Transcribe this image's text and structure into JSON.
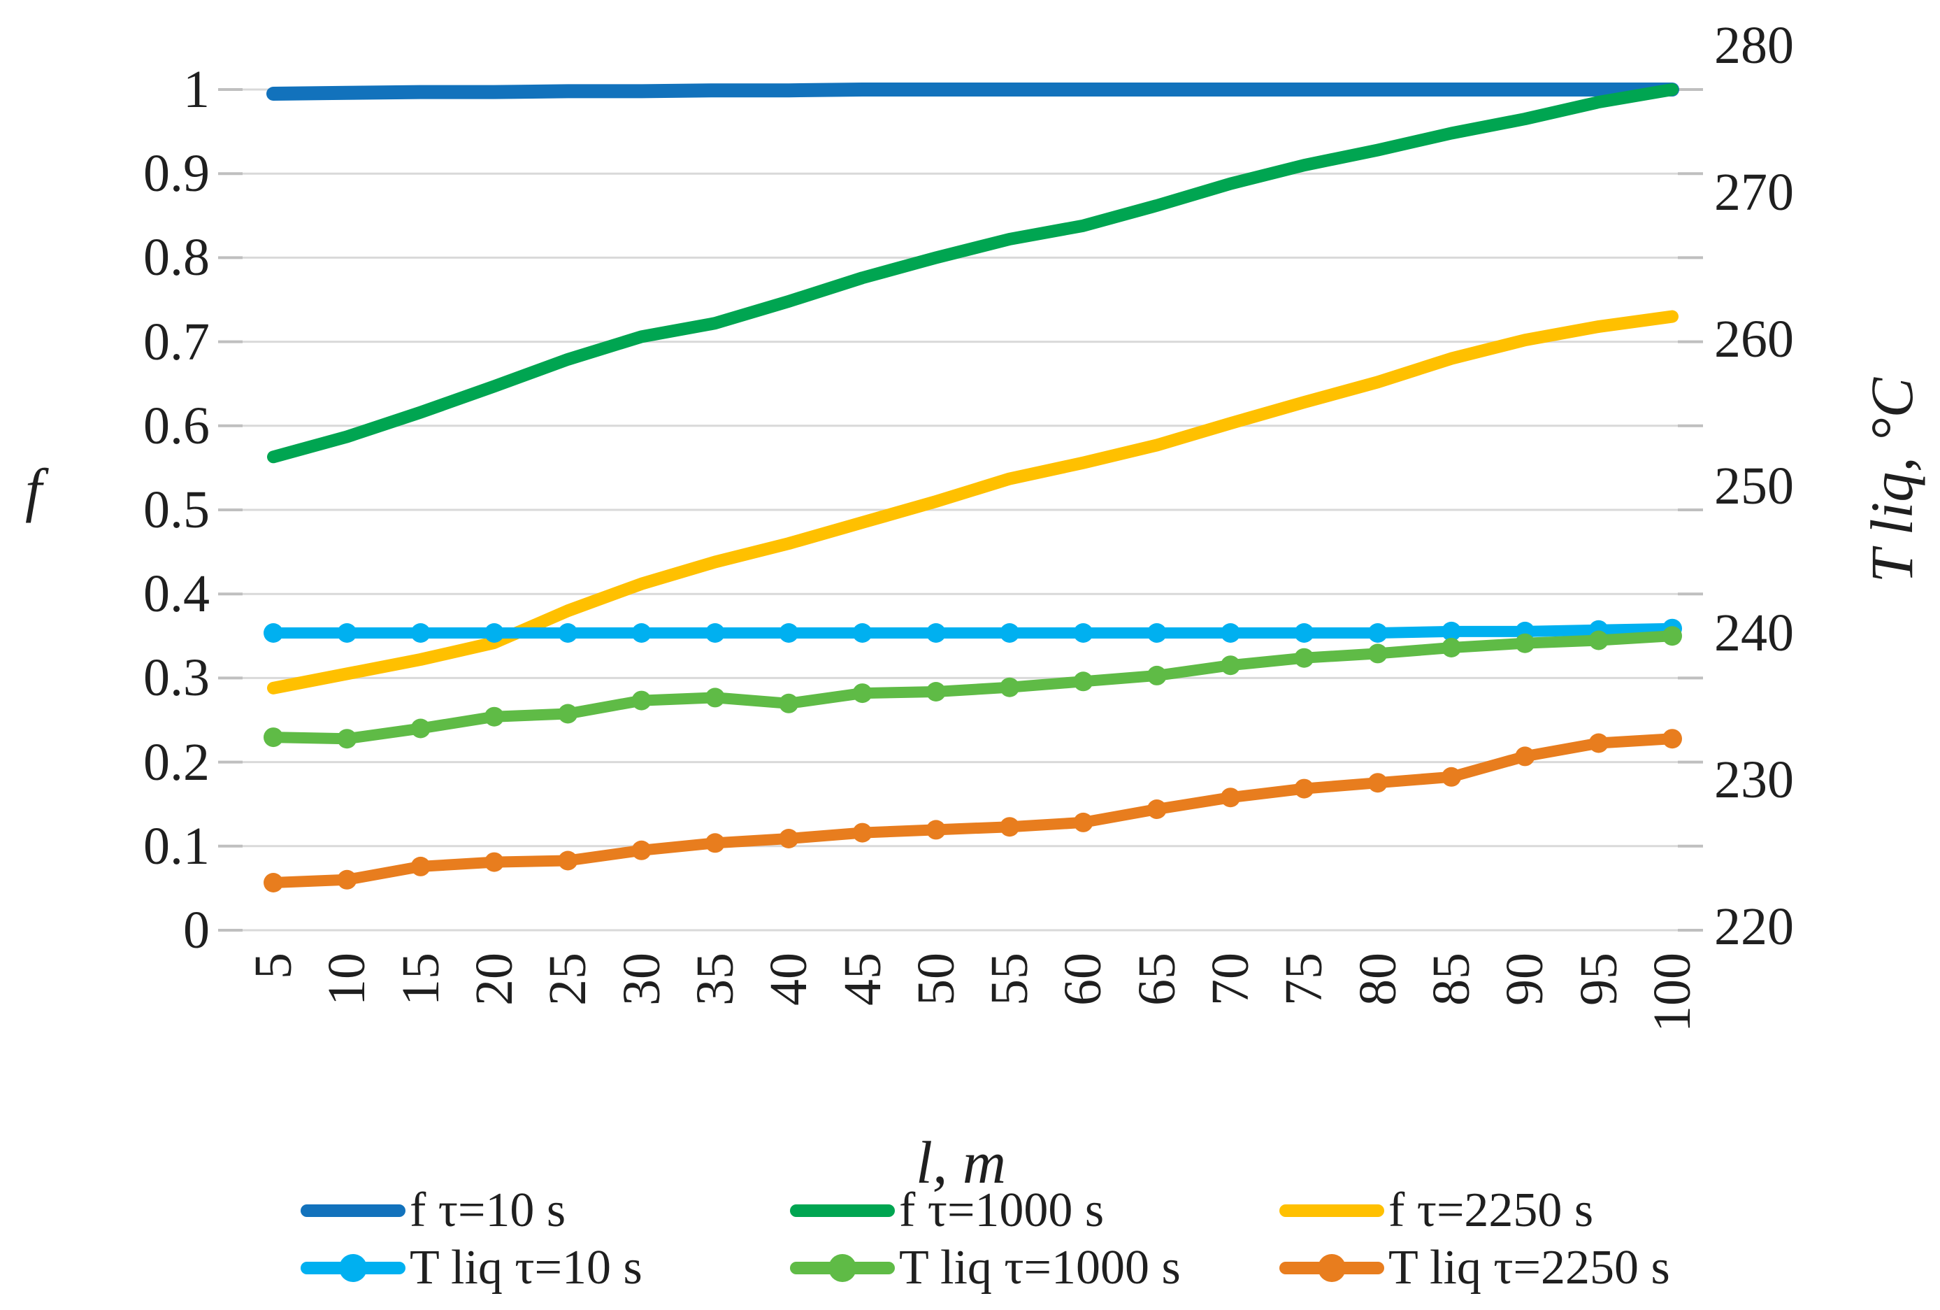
{
  "figure": {
    "background": "#ffffff",
    "grid_color": "#d9d9d9",
    "text_color": "#1f1f1f"
  },
  "chart_data": {
    "type": "line",
    "title": "",
    "xlabel": "l, m",
    "ylabel_left": "f",
    "ylabel_right": "T liq, °C",
    "x": [
      5,
      10,
      15,
      20,
      25,
      30,
      35,
      40,
      45,
      50,
      55,
      60,
      65,
      70,
      75,
      80,
      85,
      90,
      95,
      100
    ],
    "x_tick_labels": [
      "5",
      "10",
      "15",
      "20",
      "25",
      "30",
      "35",
      "40",
      "45",
      "50",
      "55",
      "60",
      "65",
      "70",
      "75",
      "80",
      "85",
      "90",
      "95",
      "100"
    ],
    "ylim_left": [
      0,
      1
    ],
    "left_tick_labels": [
      "0",
      "0.1",
      "0.2",
      "0.3",
      "0.4",
      "0.5",
      "0.6",
      "0.7",
      "0.8",
      "0.9",
      "1"
    ],
    "ylim_right": [
      220,
      280
    ],
    "right_tick_labels": [
      "220",
      "230",
      "240",
      "250",
      "260",
      "270",
      "280"
    ],
    "grid": "horizontal",
    "legend_position": "bottom",
    "series": [
      {
        "name": "f τ=10 s",
        "axis": "left",
        "color": "#1272bc",
        "marker": false,
        "width": 20,
        "values": [
          0.995,
          0.996,
          0.997,
          0.997,
          0.998,
          0.998,
          0.999,
          0.999,
          1.0,
          1.0,
          1.0,
          1.0,
          1.0,
          1.0,
          1.0,
          1.0,
          1.0,
          1.0,
          1.0,
          1.0
        ]
      },
      {
        "name": "f τ=1000 s",
        "axis": "left",
        "color": "#00a551",
        "marker": false,
        "width": 18,
        "values": [
          0.563,
          0.587,
          0.616,
          0.647,
          0.679,
          0.706,
          0.722,
          0.748,
          0.776,
          0.8,
          0.822,
          0.838,
          0.862,
          0.888,
          0.91,
          0.928,
          0.948,
          0.965,
          0.985,
          1.0
        ]
      },
      {
        "name": "f τ=2250 s",
        "axis": "left",
        "color": "#ffc000",
        "marker": false,
        "width": 18,
        "values": [
          0.288,
          0.305,
          0.322,
          0.342,
          0.38,
          0.412,
          0.438,
          0.46,
          0.485,
          0.51,
          0.537,
          0.556,
          0.577,
          0.603,
          0.628,
          0.652,
          0.68,
          0.702,
          0.718,
          0.73
        ]
      },
      {
        "name": "T liq τ=10 s",
        "axis": "right",
        "color": "#00b0f0",
        "marker": true,
        "width": 16,
        "values": [
          240,
          240,
          240,
          240,
          240,
          240,
          240,
          240,
          240,
          240,
          240,
          240,
          240,
          240,
          240,
          240,
          240.1,
          240.1,
          240.2,
          240.3
        ]
      },
      {
        "name": "T liq τ=1000 s",
        "axis": "right",
        "color": "#5fbb46",
        "marker": true,
        "width": 16,
        "values": [
          232.9,
          232.8,
          233.5,
          234.3,
          234.5,
          235.4,
          235.6,
          235.2,
          235.9,
          236.0,
          236.3,
          236.7,
          237.1,
          237.8,
          238.3,
          238.6,
          239.0,
          239.3,
          239.5,
          239.8
        ]
      },
      {
        "name": "T liq τ=2250 s",
        "axis": "right",
        "color": "#e87d1e",
        "marker": true,
        "width": 16,
        "values": [
          223.0,
          223.2,
          224.1,
          224.4,
          224.5,
          225.2,
          225.7,
          226.0,
          226.4,
          226.6,
          226.8,
          227.1,
          228.0,
          228.8,
          229.4,
          229.8,
          230.2,
          231.6,
          232.5,
          232.8
        ]
      }
    ]
  }
}
